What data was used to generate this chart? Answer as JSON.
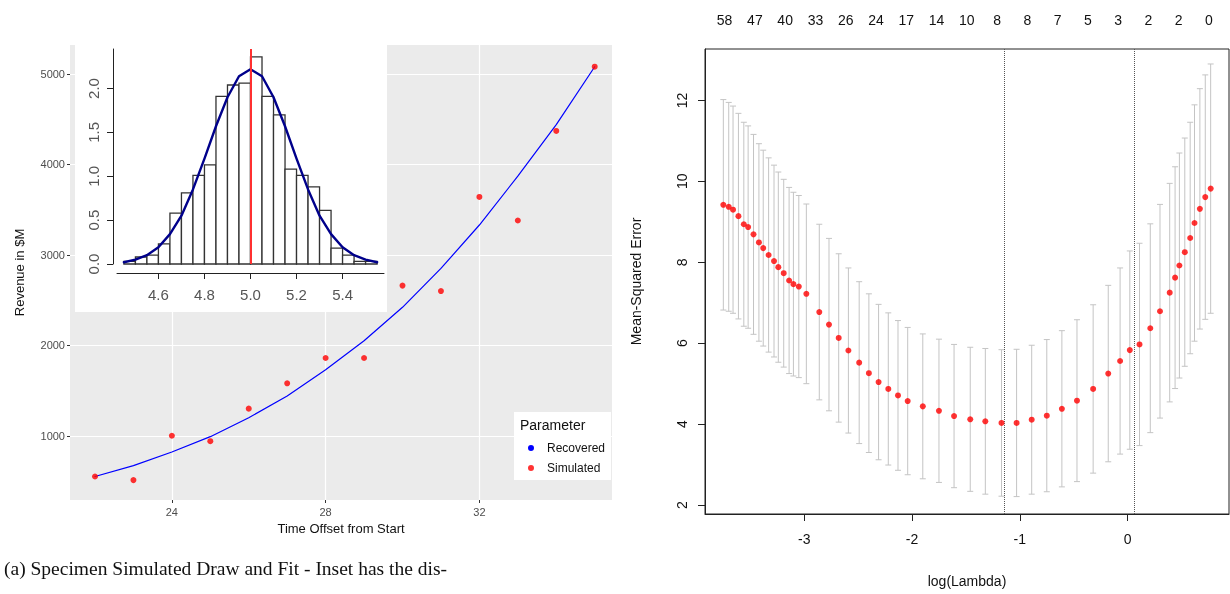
{
  "chart_data": [
    {
      "type": "line",
      "xlabel": "Time Offset from Start",
      "ylabel": "Revenue in $M",
      "legend_title": "Parameter",
      "legend": "bottom right",
      "grid": true,
      "xlim": [
        21.35,
        35.45
      ],
      "xticks": [
        24,
        28,
        32
      ],
      "ylim": [
        290,
        5320
      ],
      "yticks": [
        1000,
        2000,
        3000,
        4000,
        5000
      ],
      "x": [
        22,
        23,
        24,
        25,
        26,
        27,
        28,
        29,
        30,
        31,
        32,
        33,
        34,
        35
      ],
      "series": [
        {
          "name": "Recovered",
          "type": "line",
          "marker": "none",
          "color": "#0000ff",
          "values": [
            550,
            670,
            820,
            990,
            1200,
            1440,
            1730,
            2050,
            2420,
            2850,
            3330,
            3870,
            4440,
            5080
          ]
        },
        {
          "name": "Simulated",
          "type": "scatter",
          "marker": "circle",
          "color": "#ff0000",
          "values": [
            550,
            510,
            1000,
            940,
            1300,
            1580,
            1860,
            1860,
            2660,
            2600,
            3640,
            3380,
            4370,
            5080
          ]
        }
      ],
      "annotations": [
        "(a) Specimen Simulated Draw and Fit - Inset has the dis-"
      ]
    },
    {
      "type": "histogram",
      "color": "#ffffff",
      "bins": [
        4.45,
        4.5,
        4.55,
        4.6,
        4.65,
        4.7,
        4.75,
        4.8,
        4.85,
        4.9,
        4.95,
        5.0,
        5.05,
        5.1,
        5.15,
        5.2,
        5.25,
        5.3,
        5.35,
        5.4,
        5.45,
        5.5,
        5.55
      ],
      "values": [
        0.03,
        0.08,
        0.1,
        0.23,
        0.58,
        0.81,
        1.01,
        1.13,
        1.91,
        2.04,
        2.06,
        2.36,
        1.91,
        1.7,
        1.08,
        1.01,
        0.88,
        0.61,
        0.18,
        0.1,
        0.03,
        0.03
      ],
      "series": [
        {
          "type": "line",
          "color": "#00008b",
          "x": [
            4.45,
            4.5,
            4.55,
            4.6,
            4.65,
            4.7,
            4.75,
            4.8,
            4.85,
            4.9,
            4.95,
            5.0,
            5.05,
            5.1,
            5.15,
            5.2,
            5.25,
            5.3,
            5.35,
            5.4,
            5.45,
            5.5,
            5.55
          ],
          "values": [
            0.02,
            0.05,
            0.1,
            0.19,
            0.34,
            0.55,
            0.85,
            1.2,
            1.57,
            1.9,
            2.14,
            2.22,
            2.14,
            1.9,
            1.57,
            1.2,
            0.85,
            0.55,
            0.34,
            0.19,
            0.1,
            0.05,
            0.02
          ]
        }
      ],
      "ref_lines": [
        {
          "axis": "x",
          "value": 5.0,
          "color": "#ff3030",
          "line_style": "solid"
        }
      ],
      "xlim": [
        4.42,
        5.58
      ],
      "xticks": [
        4.6,
        4.8,
        {
          "value": 5.0,
          "label": "5.0"
        },
        5.2,
        5.4
      ],
      "ylim": [
        0,
        2.45
      ],
      "yticks": [
        {
          "value": 0,
          "label": "0.0"
        },
        0.5,
        {
          "value": 1,
          "label": "1.0"
        },
        1.5,
        {
          "value": 2,
          "label": "2.0"
        }
      ]
    },
    {
      "type": "scatter",
      "xlabel": "log(Lambda)",
      "ylabel": "Mean-Squared Error",
      "marker": "circle",
      "color": "#ff0000",
      "xlim": [
        -3.92,
        0.94
      ],
      "xticks": [
        -3,
        -2,
        -1,
        0
      ],
      "ylim": [
        1.78,
        13.27
      ],
      "yticks": [
        2,
        4,
        6,
        8,
        10,
        12
      ],
      "annotations": [
        "58",
        "47",
        "40",
        "33",
        "26",
        "24",
        "17",
        "14",
        "10",
        "8",
        "8",
        "7",
        "5",
        "3",
        "2",
        "2",
        "0"
      ],
      "ref_lines": [
        {
          "axis": "x",
          "value": -1.144,
          "color": "#555555",
          "line_style": "dotted"
        },
        {
          "axis": "x",
          "value": 0.064,
          "color": "#555555",
          "line_style": "dotted"
        }
      ],
      "x": [
        -3.75,
        -3.7,
        -3.66,
        -3.61,
        -3.56,
        -3.52,
        -3.47,
        -3.42,
        -3.38,
        -3.33,
        -3.28,
        -3.24,
        -3.19,
        -3.14,
        -3.1,
        -3.05,
        -2.98,
        -2.86,
        -2.77,
        -2.68,
        -2.59,
        -2.49,
        -2.4,
        -2.31,
        -2.22,
        -2.13,
        -2.04,
        -1.9,
        -1.75,
        -1.61,
        -1.46,
        -1.32,
        -1.17,
        -1.03,
        -0.89,
        -0.75,
        -0.61,
        -0.47,
        -0.32,
        -0.18,
        -0.07,
        0.02,
        0.11,
        0.21,
        0.3,
        0.39,
        0.44,
        0.48,
        0.53,
        0.58,
        0.62,
        0.67,
        0.72,
        0.77
      ],
      "values": [
        9.42,
        9.37,
        9.3,
        9.14,
        8.94,
        8.87,
        8.69,
        8.49,
        8.35,
        8.18,
        8.03,
        7.88,
        7.73,
        7.55,
        7.46,
        7.4,
        7.22,
        6.77,
        6.46,
        6.13,
        5.82,
        5.52,
        5.26,
        5.04,
        4.87,
        4.71,
        4.57,
        4.44,
        4.33,
        4.2,
        4.12,
        4.07,
        4.03,
        4.03,
        4.11,
        4.21,
        4.38,
        4.58,
        4.87,
        5.25,
        5.56,
        5.83,
        5.97,
        6.37,
        6.79,
        7.25,
        7.62,
        7.92,
        8.25,
        8.6,
        8.97,
        9.32,
        9.61,
        9.82
      ],
      "errors": [
        2.6,
        2.58,
        2.56,
        2.54,
        2.52,
        2.5,
        2.47,
        2.44,
        2.42,
        2.4,
        2.37,
        2.35,
        2.32,
        2.3,
        2.27,
        2.25,
        2.22,
        2.17,
        2.13,
        2.08,
        2.04,
        2.0,
        1.96,
        1.92,
        1.88,
        1.85,
        1.82,
        1.79,
        1.77,
        1.77,
        1.78,
        1.8,
        1.81,
        1.82,
        1.84,
        1.88,
        1.93,
        2.0,
        2.08,
        2.18,
        2.3,
        2.45,
        2.5,
        2.58,
        2.64,
        2.7,
        2.74,
        2.78,
        2.82,
        2.86,
        2.92,
        2.97,
        3.02,
        3.08
      ]
    }
  ]
}
